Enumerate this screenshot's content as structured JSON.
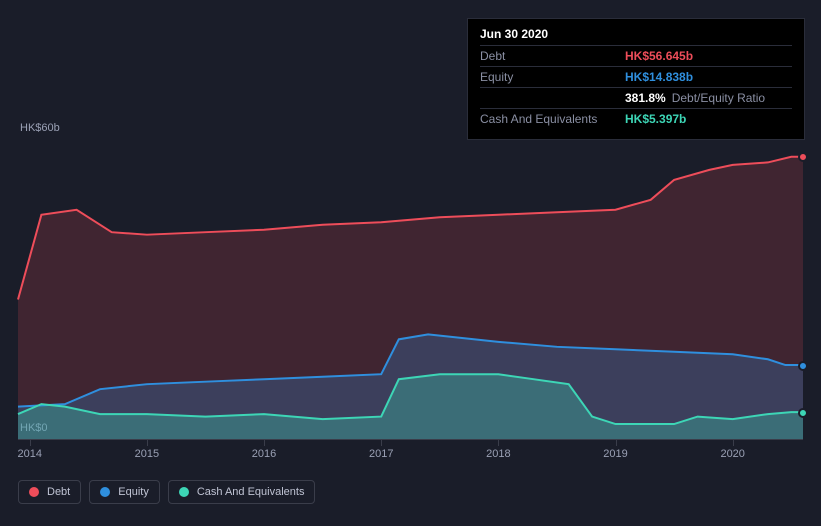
{
  "chart": {
    "type": "area",
    "background_color": "#1a1d29",
    "grid_color": "#3a3d4a",
    "label_color": "#9aa0b4",
    "label_fontsize": 11,
    "x_years": [
      "2014",
      "2015",
      "2016",
      "2017",
      "2018",
      "2019",
      "2020"
    ],
    "y_ticks": [
      {
        "label": "HK$60b",
        "value": 60
      },
      {
        "label": "HK$0",
        "value": 0
      }
    ],
    "ylim": [
      0,
      60
    ],
    "xlim": [
      2013.9,
      2020.6
    ],
    "series": {
      "debt": {
        "label": "Debt",
        "color": "#ee4d5a",
        "fill": "rgba(238,77,90,0.18)",
        "data": [
          [
            2013.9,
            28
          ],
          [
            2014.1,
            45
          ],
          [
            2014.4,
            46
          ],
          [
            2014.7,
            41.5
          ],
          [
            2015.0,
            41
          ],
          [
            2015.5,
            41.5
          ],
          [
            2016.0,
            42
          ],
          [
            2016.5,
            43
          ],
          [
            2017.0,
            43.5
          ],
          [
            2017.5,
            44.5
          ],
          [
            2018.0,
            45
          ],
          [
            2018.5,
            45.5
          ],
          [
            2019.0,
            46
          ],
          [
            2019.3,
            48
          ],
          [
            2019.5,
            52
          ],
          [
            2019.8,
            54
          ],
          [
            2020.0,
            55
          ],
          [
            2020.3,
            55.5
          ],
          [
            2020.5,
            56.645
          ],
          [
            2020.6,
            56.645
          ]
        ]
      },
      "equity": {
        "label": "Equity",
        "color": "#2f8fde",
        "fill": "rgba(47,143,222,0.25)",
        "data": [
          [
            2013.9,
            6.5
          ],
          [
            2014.3,
            7
          ],
          [
            2014.6,
            10
          ],
          [
            2015.0,
            11
          ],
          [
            2015.5,
            11.5
          ],
          [
            2016.0,
            12
          ],
          [
            2016.5,
            12.5
          ],
          [
            2017.0,
            13
          ],
          [
            2017.15,
            20
          ],
          [
            2017.4,
            21
          ],
          [
            2018.0,
            19.5
          ],
          [
            2018.5,
            18.5
          ],
          [
            2019.0,
            18
          ],
          [
            2019.5,
            17.5
          ],
          [
            2020.0,
            17
          ],
          [
            2020.3,
            16
          ],
          [
            2020.45,
            14.838
          ],
          [
            2020.6,
            14.838
          ]
        ]
      },
      "cash": {
        "label": "Cash And Equivalents",
        "color": "#3dd6b6",
        "fill": "rgba(61,214,182,0.30)",
        "data": [
          [
            2013.9,
            5
          ],
          [
            2014.1,
            7
          ],
          [
            2014.3,
            6.5
          ],
          [
            2014.6,
            5
          ],
          [
            2015.0,
            5
          ],
          [
            2015.5,
            4.5
          ],
          [
            2016.0,
            5
          ],
          [
            2016.5,
            4
          ],
          [
            2017.0,
            4.5
          ],
          [
            2017.15,
            12
          ],
          [
            2017.5,
            13
          ],
          [
            2018.0,
            13
          ],
          [
            2018.3,
            12
          ],
          [
            2018.6,
            11
          ],
          [
            2018.8,
            4.5
          ],
          [
            2019.0,
            3
          ],
          [
            2019.3,
            3
          ],
          [
            2019.5,
            3
          ],
          [
            2019.7,
            4.5
          ],
          [
            2020.0,
            4
          ],
          [
            2020.3,
            5
          ],
          [
            2020.5,
            5.397
          ],
          [
            2020.6,
            5.397
          ]
        ]
      }
    }
  },
  "tooltip": {
    "title": "Jun 30 2020",
    "rows": [
      {
        "label": "Debt",
        "value": "HK$56.645b",
        "color": "#ee4d5a"
      },
      {
        "label": "Equity",
        "value": "HK$14.838b",
        "color": "#2f8fde"
      },
      {
        "label": "",
        "value": "381.8%",
        "color": "#ffffff",
        "extra": "Debt/Equity Ratio"
      },
      {
        "label": "Cash And Equivalents",
        "value": "HK$5.397b",
        "color": "#3dd6b6"
      }
    ]
  },
  "legend": [
    {
      "label": "Debt",
      "color": "#ee4d5a"
    },
    {
      "label": "Equity",
      "color": "#2f8fde"
    },
    {
      "label": "Cash And Equivalents",
      "color": "#3dd6b6"
    }
  ]
}
